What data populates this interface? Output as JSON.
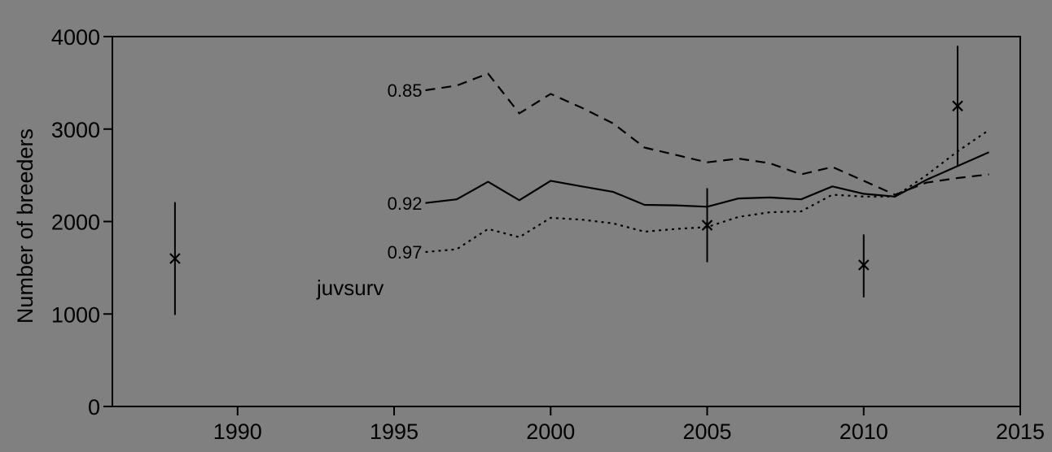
{
  "chart_data": {
    "type": "line",
    "title": "",
    "xlabel": "",
    "ylabel": "Number of breeders",
    "xlim": [
      1986,
      2015
    ],
    "ylim": [
      0,
      4000
    ],
    "xticks": [
      1990,
      1995,
      2000,
      2005,
      2010,
      2015
    ],
    "yticks": [
      0,
      1000,
      2000,
      3000,
      4000
    ],
    "grid": false,
    "legend": "none",
    "annotation": "juvsurv",
    "series": [
      {
        "name": "0.85",
        "style": "dashed",
        "x": [
          1996,
          1997,
          1998,
          1999,
          2000,
          2001,
          2002,
          2003,
          2004,
          2005,
          2006,
          2007,
          2008,
          2009,
          2010,
          2011,
          2012,
          2013,
          2014
        ],
        "y": [
          3420,
          3470,
          3600,
          3170,
          3380,
          3230,
          3060,
          2800,
          2720,
          2640,
          2680,
          2630,
          2510,
          2590,
          2440,
          2290,
          2420,
          2470,
          2510
        ]
      },
      {
        "name": "0.92",
        "style": "solid",
        "x": [
          1996,
          1997,
          1998,
          1999,
          2000,
          2001,
          2002,
          2003,
          2004,
          2005,
          2006,
          2007,
          2008,
          2009,
          2010,
          2011,
          2012,
          2013,
          2014
        ],
        "y": [
          2200,
          2240,
          2430,
          2230,
          2440,
          2380,
          2320,
          2180,
          2175,
          2160,
          2250,
          2260,
          2240,
          2380,
          2300,
          2270,
          2450,
          2600,
          2750
        ]
      },
      {
        "name": "0.97",
        "style": "dotted",
        "x": [
          1996,
          1997,
          1998,
          1999,
          2000,
          2001,
          2002,
          2003,
          2004,
          2005,
          2006,
          2007,
          2008,
          2009,
          2010,
          2011,
          2012,
          2013,
          2014
        ],
        "y": [
          1670,
          1700,
          1920,
          1830,
          2040,
          2020,
          1980,
          1890,
          1920,
          1940,
          2050,
          2100,
          2110,
          2290,
          2270,
          2270,
          2500,
          2760,
          2990
        ]
      }
    ],
    "observations": [
      {
        "x": 1988,
        "y": 1600,
        "low": 990,
        "high": 2210
      },
      {
        "x": 2005,
        "y": 1960,
        "low": 1560,
        "high": 2360
      },
      {
        "x": 2010,
        "y": 1530,
        "low": 1180,
        "high": 1860
      },
      {
        "x": 2013,
        "y": 3250,
        "low": 2600,
        "high": 3900
      }
    ]
  }
}
